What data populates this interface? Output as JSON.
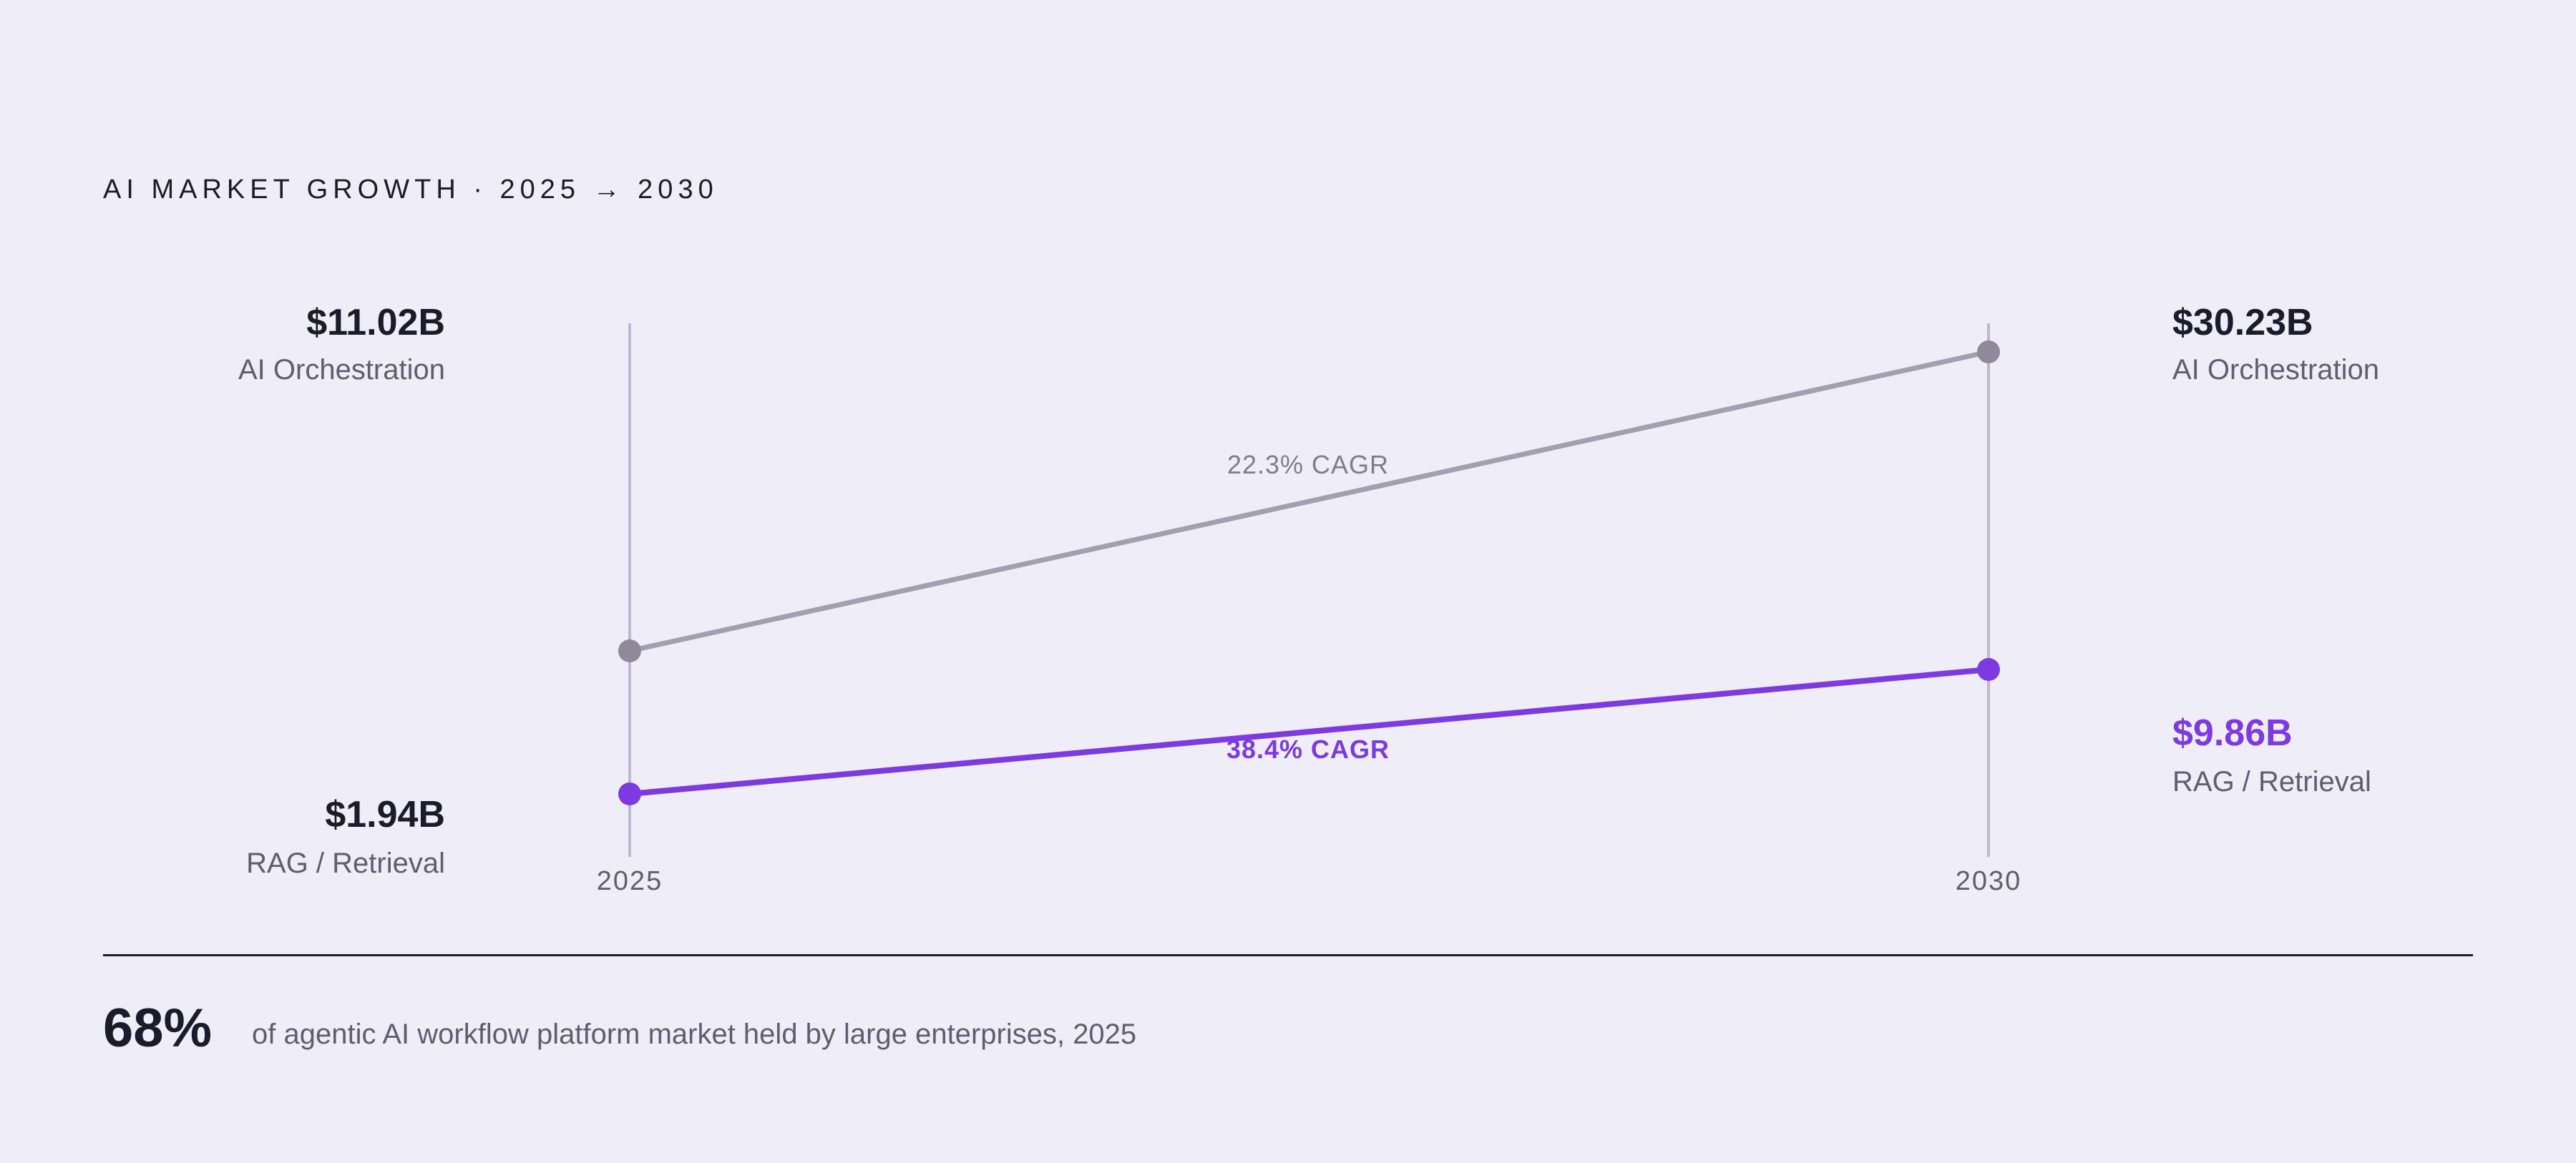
{
  "title": "AI MARKET GROWTH · 2025 → 2030",
  "chart_data": {
    "type": "line",
    "title": "AI MARKET GROWTH · 2025 → 2030",
    "x": [
      "2025",
      "2030"
    ],
    "series": [
      {
        "name": "AI Orchestration",
        "values": [
          11.02,
          30.23
        ],
        "value_labels": [
          "$11.02B",
          "$30.23B"
        ],
        "cagr_label": "22.3% CAGR",
        "color": "#a39fae"
      },
      {
        "name": "RAG / Retrieval",
        "values": [
          1.94,
          9.86
        ],
        "value_labels": [
          "$1.94B",
          "$9.86B"
        ],
        "cagr_label": "38.4% CAGR",
        "color": "#7c3ae0"
      }
    ],
    "grid": false,
    "legend": "none"
  },
  "footer": {
    "stat_value": "68%",
    "stat_text": "of agentic AI workflow platform market held by large enterprises, 2025"
  },
  "colors": {
    "background": "#efedf8",
    "accent": "#7c3ae0",
    "muted": "#a39fae",
    "text": "#1c1b2b",
    "secondary_text": "#5f5d70"
  }
}
